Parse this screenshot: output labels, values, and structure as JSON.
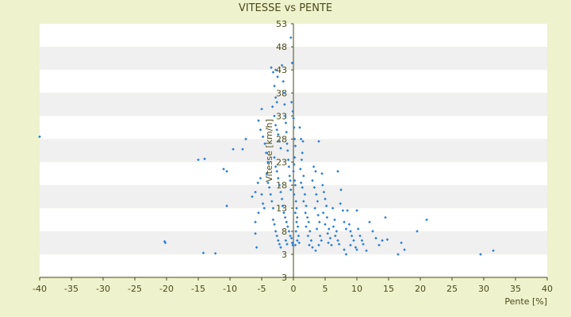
{
  "chart_data": {
    "type": "scatter",
    "title": "VITESSE vs PENTE",
    "xlabel": "Pente [%]",
    "ylabel": "Vitesse [km/h]",
    "xlim": [
      -40,
      40
    ],
    "ylim": [
      -2,
      53
    ],
    "x_ticks": [
      "-40",
      "-35",
      "-30",
      "-25",
      "-20",
      "-15",
      "-10",
      "-5",
      "0",
      "5",
      "10",
      "15",
      "20",
      "25",
      "30",
      "35",
      "40"
    ],
    "y_ticks": [
      "3",
      "3",
      "8",
      "13",
      "18",
      "23",
      "28",
      "33",
      "38",
      "43",
      "48",
      "53"
    ],
    "grid": true,
    "legend": "none",
    "colors": {
      "background": "#eef2cd",
      "plot_bands": [
        "#ffffff",
        "#f0f0f0"
      ],
      "marker": "#2f7fd6",
      "axis": "#4a4a1a"
    },
    "series": [
      {
        "points": [
          [
            -40,
            28.5
          ],
          [
            -20.3,
            5.8
          ],
          [
            -20.2,
            5.5
          ],
          [
            -14.2,
            3.3
          ],
          [
            -12.3,
            3.2
          ],
          [
            -15.0,
            23.5
          ],
          [
            -14.0,
            23.7
          ],
          [
            -11.0,
            21.5
          ],
          [
            -10.5,
            21.0
          ],
          [
            -9.5,
            25.8
          ],
          [
            -8.0,
            25.8
          ],
          [
            -7.5,
            28.0
          ],
          [
            -10.5,
            13.5
          ],
          [
            -6.5,
            15.5
          ],
          [
            -6.0,
            16.5
          ],
          [
            -5.5,
            12.0
          ],
          [
            -6.0,
            10.0
          ],
          [
            -6.0,
            7.5
          ],
          [
            -5.8,
            4.5
          ],
          [
            -5.6,
            18.5
          ],
          [
            -5.2,
            19.5
          ],
          [
            -5.0,
            16.0
          ],
          [
            -4.8,
            14.0
          ],
          [
            -4.6,
            13.0
          ],
          [
            -5.5,
            32.0
          ],
          [
            -5.2,
            30.0
          ],
          [
            -5.0,
            34.5
          ],
          [
            -4.8,
            28.5
          ],
          [
            -4.5,
            27.0
          ],
          [
            -4.3,
            25.0
          ],
          [
            -4.0,
            23.0
          ],
          [
            -4.2,
            20.5
          ],
          [
            -4.0,
            18.5
          ],
          [
            -3.8,
            17.5
          ],
          [
            -3.6,
            16.0
          ],
          [
            -3.4,
            14.5
          ],
          [
            -3.2,
            13.0
          ],
          [
            -3.5,
            43.5
          ],
          [
            -3.2,
            42.5
          ],
          [
            -2.8,
            43.0
          ],
          [
            -2.5,
            41.5
          ],
          [
            -3.0,
            39.5
          ],
          [
            -2.8,
            37.0
          ],
          [
            -2.6,
            36.0
          ],
          [
            -3.3,
            35.0
          ],
          [
            -3.0,
            33.0
          ],
          [
            -2.8,
            31.0
          ],
          [
            -2.6,
            30.0
          ],
          [
            -2.4,
            29.0
          ],
          [
            -2.2,
            27.5
          ],
          [
            -2.0,
            26.0
          ],
          [
            -3.0,
            24.0
          ],
          [
            -2.8,
            22.0
          ],
          [
            -2.6,
            21.0
          ],
          [
            -2.4,
            19.5
          ],
          [
            -2.2,
            18.0
          ],
          [
            -2.0,
            16.5
          ],
          [
            -1.8,
            15.0
          ],
          [
            -3.2,
            10.5
          ],
          [
            -3.0,
            9.5
          ],
          [
            -2.8,
            8.0
          ],
          [
            -2.6,
            7.0
          ],
          [
            -2.4,
            6.0
          ],
          [
            -2.2,
            5.2
          ],
          [
            -2.0,
            4.5
          ],
          [
            -1.8,
            44.0
          ],
          [
            -1.6,
            40.5
          ],
          [
            -1.5,
            38.0
          ],
          [
            -1.4,
            35.5
          ],
          [
            -1.3,
            33.0
          ],
          [
            -1.2,
            31.5
          ],
          [
            -1.1,
            29.5
          ],
          [
            -1.0,
            27.0
          ],
          [
            -0.9,
            25.5
          ],
          [
            -0.8,
            23.5
          ],
          [
            -0.7,
            22.0
          ],
          [
            -0.6,
            20.0
          ],
          [
            -0.5,
            19.0
          ],
          [
            -0.4,
            17.0
          ],
          [
            -1.7,
            13.5
          ],
          [
            -1.5,
            12.0
          ],
          [
            -1.3,
            11.0
          ],
          [
            -1.1,
            10.0
          ],
          [
            -0.9,
            9.0
          ],
          [
            -0.7,
            8.0
          ],
          [
            -0.5,
            7.0
          ],
          [
            -0.3,
            6.5
          ],
          [
            -0.2,
            5.5
          ],
          [
            -0.1,
            5.0
          ],
          [
            -1.2,
            6.0
          ],
          [
            -1.0,
            5.2
          ],
          [
            -0.4,
            50.0
          ],
          [
            -0.2,
            44.5
          ],
          [
            -0.3,
            36.0
          ],
          [
            -0.1,
            34.0
          ],
          [
            0.0,
            32.5
          ],
          [
            0.1,
            30.5
          ],
          [
            0.2,
            28.0
          ],
          [
            0.3,
            26.5
          ],
          [
            0.2,
            24.0
          ],
          [
            0.1,
            22.5
          ],
          [
            0.0,
            21.0
          ],
          [
            0.2,
            19.0
          ],
          [
            0.3,
            18.0
          ],
          [
            0.1,
            16.0
          ],
          [
            0.4,
            14.5
          ],
          [
            0.5,
            13.0
          ],
          [
            0.3,
            12.0
          ],
          [
            0.6,
            11.0
          ],
          [
            0.5,
            10.0
          ],
          [
            0.7,
            9.0
          ],
          [
            0.4,
            8.0
          ],
          [
            0.8,
            7.0
          ],
          [
            0.6,
            6.0
          ],
          [
            0.9,
            5.5
          ],
          [
            0.3,
            5.0
          ],
          [
            1.0,
            30.5
          ],
          [
            1.2,
            28.0
          ],
          [
            1.5,
            27.5
          ],
          [
            1.4,
            25.0
          ],
          [
            1.3,
            23.5
          ],
          [
            1.1,
            21.5
          ],
          [
            1.6,
            20.0
          ],
          [
            1.2,
            18.5
          ],
          [
            1.4,
            17.5
          ],
          [
            1.8,
            16.0
          ],
          [
            1.6,
            14.5
          ],
          [
            2.0,
            13.5
          ],
          [
            1.9,
            12.0
          ],
          [
            2.2,
            11.0
          ],
          [
            2.4,
            10.0
          ],
          [
            2.0,
            9.0
          ],
          [
            2.6,
            8.0
          ],
          [
            2.3,
            7.0
          ],
          [
            2.8,
            6.0
          ],
          [
            2.5,
            5.0
          ],
          [
            3.0,
            4.5
          ],
          [
            3.2,
            22.0
          ],
          [
            3.5,
            21.0
          ],
          [
            3.0,
            19.0
          ],
          [
            3.3,
            17.5
          ],
          [
            3.6,
            16.0
          ],
          [
            3.8,
            14.5
          ],
          [
            3.4,
            13.0
          ],
          [
            3.9,
            11.5
          ],
          [
            4.1,
            10.0
          ],
          [
            3.7,
            8.5
          ],
          [
            4.2,
            7.0
          ],
          [
            4.4,
            6.0
          ],
          [
            4.0,
            5.0
          ],
          [
            3.5,
            3.8
          ],
          [
            4.0,
            27.5
          ],
          [
            4.5,
            20.5
          ],
          [
            4.6,
            18.0
          ],
          [
            4.8,
            16.5
          ],
          [
            5.0,
            15.0
          ],
          [
            5.2,
            13.5
          ],
          [
            4.7,
            12.0
          ],
          [
            5.3,
            11.0
          ],
          [
            5.0,
            9.5
          ],
          [
            5.6,
            8.5
          ],
          [
            5.4,
            7.5
          ],
          [
            5.8,
            6.5
          ],
          [
            5.5,
            5.5
          ],
          [
            6.0,
            5.0
          ],
          [
            6.2,
            13.0
          ],
          [
            6.5,
            10.5
          ],
          [
            6.3,
            9.0
          ],
          [
            6.8,
            8.0
          ],
          [
            6.6,
            7.0
          ],
          [
            7.0,
            6.0
          ],
          [
            7.2,
            5.2
          ],
          [
            7.0,
            21.0
          ],
          [
            7.5,
            17.0
          ],
          [
            7.4,
            14.0
          ],
          [
            7.8,
            12.5
          ],
          [
            8.0,
            10.0
          ],
          [
            8.3,
            8.5
          ],
          [
            8.0,
            4.0
          ],
          [
            8.5,
            12.5
          ],
          [
            8.8,
            9.5
          ],
          [
            9.0,
            8.0
          ],
          [
            9.2,
            7.0
          ],
          [
            9.5,
            6.0
          ],
          [
            9.0,
            5.0
          ],
          [
            9.8,
            4.5
          ],
          [
            8.3,
            3.0
          ],
          [
            10.0,
            12.5
          ],
          [
            10.2,
            8.5
          ],
          [
            10.5,
            7.0
          ],
          [
            10.8,
            6.0
          ],
          [
            11.0,
            5.2
          ],
          [
            10.0,
            4.0
          ],
          [
            11.5,
            3.8
          ],
          [
            12.0,
            10.0
          ],
          [
            12.5,
            8.0
          ],
          [
            13.0,
            6.5
          ],
          [
            13.5,
            5.0
          ],
          [
            14.0,
            6.0
          ],
          [
            14.5,
            11.0
          ],
          [
            14.8,
            6.2
          ],
          [
            16.5,
            3.0
          ],
          [
            17.0,
            5.5
          ],
          [
            17.5,
            4.0
          ],
          [
            19.5,
            8.0
          ],
          [
            21.0,
            10.5
          ],
          [
            29.5,
            3.0
          ],
          [
            31.5,
            3.8
          ]
        ]
      }
    ]
  }
}
